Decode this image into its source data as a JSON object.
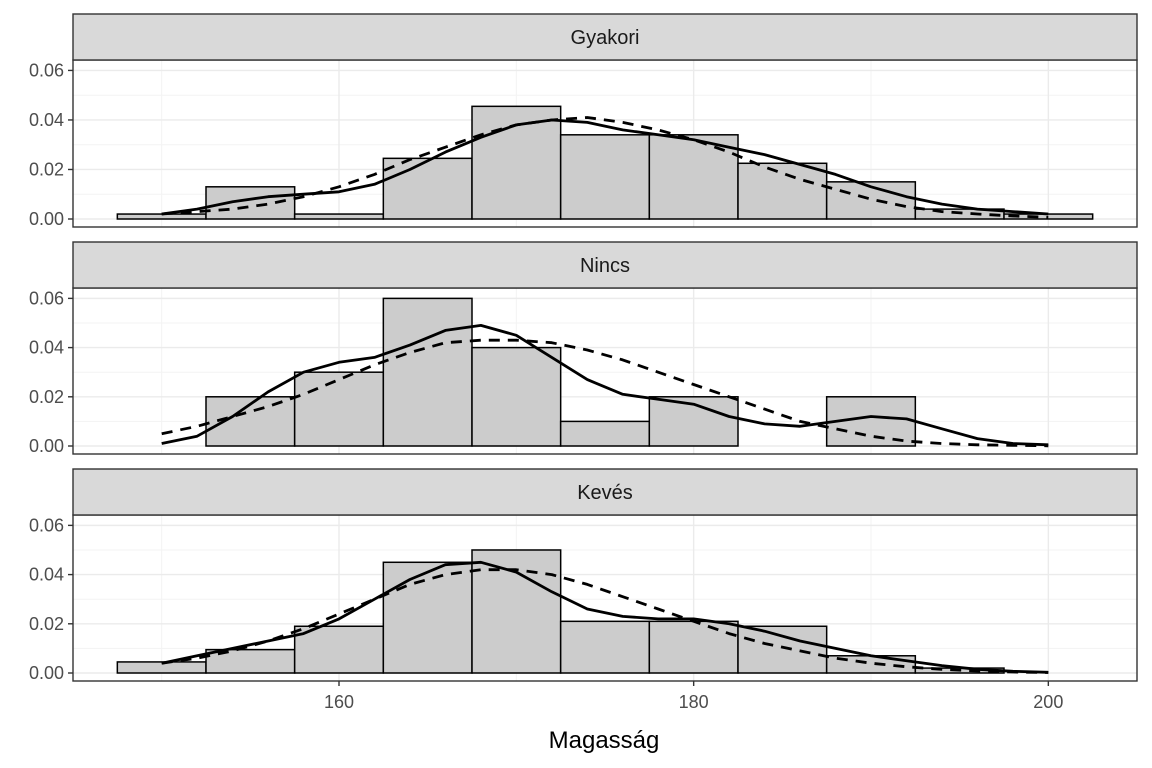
{
  "chart_data": {
    "type": "bar",
    "subtype": "faceted-histogram-with-density",
    "xlabel": "Magasság",
    "ylabel": "",
    "xlim": [
      145,
      205
    ],
    "ylim": [
      0,
      0.063
    ],
    "x_ticks": [
      160,
      180,
      200
    ],
    "x_tick_labels": [
      "160",
      "180",
      "200"
    ],
    "y_ticks": [
      0,
      0.02,
      0.04,
      0.06
    ],
    "y_tick_labels": [
      "0.00",
      "0.02",
      "0.04",
      "0.06"
    ],
    "grid": true,
    "bin_edges": [
      147.5,
      152.5,
      157.5,
      162.5,
      167.5,
      172.5,
      177.5,
      182.5,
      187.5,
      192.5,
      197.5,
      202.5
    ],
    "colors": {
      "bar_fill": "#cccccc",
      "bar_stroke": "#000000",
      "strip_fill": "#d9d9d9",
      "line": "#000000",
      "grid": "#ebebeb"
    },
    "panels": [
      {
        "name": "Gyakori",
        "bin_density": [
          0.002,
          0.013,
          0.002,
          0.0245,
          0.0455,
          0.034,
          0.034,
          0.0225,
          0.015,
          0.004,
          0.002
        ],
        "kde_x": [
          150,
          152,
          154,
          156,
          158,
          160,
          162,
          164,
          166,
          168,
          170,
          172,
          174,
          176,
          178,
          180,
          182,
          184,
          186,
          188,
          190,
          192,
          194,
          196,
          198,
          200
        ],
        "kde_y": [
          0.002,
          0.004,
          0.007,
          0.009,
          0.01,
          0.011,
          0.014,
          0.02,
          0.027,
          0.033,
          0.038,
          0.04,
          0.039,
          0.036,
          0.034,
          0.032,
          0.029,
          0.026,
          0.022,
          0.018,
          0.013,
          0.009,
          0.006,
          0.004,
          0.003,
          0.002
        ],
        "normal_x": [
          150,
          152,
          154,
          156,
          158,
          160,
          162,
          164,
          166,
          168,
          170,
          172,
          174,
          176,
          178,
          180,
          182,
          184,
          186,
          188,
          190,
          192,
          194,
          196,
          198,
          200
        ],
        "normal_y": [
          0.002,
          0.003,
          0.004,
          0.006,
          0.009,
          0.013,
          0.018,
          0.024,
          0.029,
          0.034,
          0.038,
          0.04,
          0.041,
          0.039,
          0.036,
          0.032,
          0.027,
          0.021,
          0.016,
          0.012,
          0.008,
          0.005,
          0.003,
          0.002,
          0.0012,
          0.0007
        ]
      },
      {
        "name": "Nincs",
        "bin_density": [
          0.0,
          0.02,
          0.03,
          0.06,
          0.04,
          0.01,
          0.02,
          0.0,
          0.02,
          0.0,
          0.0
        ],
        "kde_x": [
          150,
          152,
          154,
          156,
          158,
          160,
          162,
          164,
          166,
          168,
          170,
          172,
          174,
          176,
          178,
          180,
          182,
          184,
          186,
          188,
          190,
          192,
          194,
          196,
          198,
          200
        ],
        "kde_y": [
          0.001,
          0.004,
          0.012,
          0.022,
          0.03,
          0.034,
          0.036,
          0.041,
          0.047,
          0.049,
          0.045,
          0.036,
          0.027,
          0.021,
          0.019,
          0.017,
          0.012,
          0.009,
          0.008,
          0.01,
          0.012,
          0.011,
          0.007,
          0.003,
          0.001,
          0.0005
        ],
        "normal_x": [
          150,
          152,
          154,
          156,
          158,
          160,
          162,
          164,
          166,
          168,
          170,
          172,
          174,
          176,
          178,
          180,
          182,
          184,
          186,
          188,
          190,
          192,
          194,
          196,
          198,
          200
        ],
        "normal_y": [
          0.005,
          0.008,
          0.012,
          0.016,
          0.021,
          0.027,
          0.033,
          0.038,
          0.042,
          0.043,
          0.043,
          0.042,
          0.039,
          0.035,
          0.03,
          0.025,
          0.02,
          0.015,
          0.01,
          0.007,
          0.004,
          0.002,
          0.001,
          0.0005,
          0.0003,
          0.0001
        ]
      },
      {
        "name": "Kevés",
        "bin_density": [
          0.0045,
          0.0095,
          0.019,
          0.045,
          0.05,
          0.021,
          0.021,
          0.019,
          0.007,
          0.002,
          0.0
        ],
        "kde_x": [
          150,
          152,
          154,
          156,
          158,
          160,
          162,
          164,
          166,
          168,
          170,
          172,
          174,
          176,
          178,
          180,
          182,
          184,
          186,
          188,
          190,
          192,
          194,
          196,
          198,
          200
        ],
        "kde_y": [
          0.004,
          0.007,
          0.01,
          0.013,
          0.016,
          0.022,
          0.03,
          0.038,
          0.044,
          0.045,
          0.041,
          0.033,
          0.026,
          0.023,
          0.022,
          0.022,
          0.02,
          0.017,
          0.013,
          0.01,
          0.007,
          0.005,
          0.003,
          0.0015,
          0.0007,
          0.0003
        ],
        "normal_x": [
          150,
          152,
          154,
          156,
          158,
          160,
          162,
          164,
          166,
          168,
          170,
          172,
          174,
          176,
          178,
          180,
          182,
          184,
          186,
          188,
          190,
          192,
          194,
          196,
          198,
          200
        ],
        "normal_y": [
          0.004,
          0.006,
          0.009,
          0.013,
          0.018,
          0.024,
          0.03,
          0.036,
          0.04,
          0.042,
          0.042,
          0.04,
          0.036,
          0.031,
          0.026,
          0.021,
          0.016,
          0.012,
          0.009,
          0.006,
          0.004,
          0.0025,
          0.0015,
          0.0008,
          0.0004,
          0.0002
        ]
      }
    ]
  }
}
